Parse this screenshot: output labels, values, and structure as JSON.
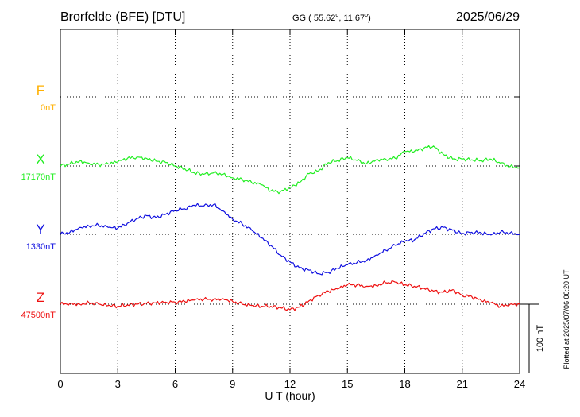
{
  "header": {
    "station": "Brorfelde (BFE)  [DTU]",
    "coords": "GG ( 55.62",
    "coords_lat_unit": "o",
    "coords_mid": ",  11.67",
    "coords_lon_unit": "o",
    "coords_close": ")",
    "date": "2025/06/29"
  },
  "footer_note": "Plotted at 2025/07/06 00:20 UT",
  "scale_label": "100 nT",
  "chart_data": {
    "type": "line",
    "xlabel": "U T (hour)",
    "xlim": [
      0,
      24
    ],
    "xticks": [
      0,
      3,
      6,
      9,
      12,
      15,
      18,
      21,
      24
    ],
    "grid": true,
    "scale_nT": 100,
    "series": [
      {
        "name": "F",
        "baseline_label": "0nT",
        "color": "#ffb000",
        "baseline_nT": 0,
        "x": [],
        "values": []
      },
      {
        "name": "X",
        "baseline_label": "17170nT",
        "color": "#22ee22",
        "baseline_nT": 17170,
        "x": [
          0,
          0.5,
          1,
          1.5,
          2,
          2.5,
          3,
          3.5,
          4,
          4.5,
          5,
          5.5,
          6,
          6.5,
          7,
          7.5,
          8,
          8.5,
          9,
          9.5,
          10,
          10.5,
          11,
          11.5,
          12,
          12.5,
          13,
          13.5,
          14,
          14.5,
          15,
          15.5,
          16,
          16.5,
          17,
          17.5,
          18,
          18.5,
          19,
          19.5,
          20,
          20.5,
          21,
          21.5,
          22,
          22.5,
          23,
          23.5,
          24
        ],
        "values": [
          17170,
          17173,
          17177,
          17174,
          17172,
          17173,
          17176,
          17181,
          17183,
          17181,
          17177,
          17175,
          17170,
          17166,
          17160,
          17158,
          17160,
          17158,
          17153,
          17151,
          17146,
          17143,
          17134,
          17133,
          17139,
          17146,
          17159,
          17163,
          17175,
          17178,
          17182,
          17178,
          17173,
          17179,
          17180,
          17181,
          17191,
          17191,
          17196,
          17199,
          17187,
          17180,
          17180,
          17179,
          17178,
          17180,
          17174,
          17169,
          17168
        ]
      },
      {
        "name": "Y",
        "baseline_label": "1330nT",
        "color": "#1010e0",
        "baseline_nT": 1330,
        "x": [
          0,
          0.5,
          1,
          1.5,
          2,
          2.5,
          3,
          3.5,
          4,
          4.5,
          5,
          5.5,
          6,
          6.5,
          7,
          7.5,
          8,
          8.5,
          9,
          9.5,
          10,
          10.5,
          11,
          11.5,
          12,
          12.5,
          13,
          13.5,
          14,
          14.5,
          15,
          15.5,
          16,
          16.5,
          17,
          17.5,
          18,
          18.5,
          19,
          19.5,
          20,
          20.5,
          21,
          21.5,
          22,
          22.5,
          23,
          23.5,
          24
        ],
        "values": [
          1330,
          1333,
          1340,
          1342,
          1343,
          1340,
          1339,
          1346,
          1353,
          1357,
          1354,
          1359,
          1365,
          1367,
          1372,
          1371,
          1373,
          1364,
          1352,
          1345,
          1336,
          1325,
          1314,
          1300,
          1290,
          1281,
          1278,
          1273,
          1275,
          1281,
          1286,
          1289,
          1292,
          1300,
          1307,
          1314,
          1320,
          1322,
          1331,
          1338,
          1340,
          1336,
          1331,
          1333,
          1332,
          1329,
          1333,
          1332,
          1330
        ]
      },
      {
        "name": "Z",
        "baseline_label": "47500nT",
        "color": "#ee1010",
        "baseline_nT": 47500,
        "x": [
          0,
          0.5,
          1,
          1.5,
          2,
          2.5,
          3,
          3.5,
          4,
          4.5,
          5,
          5.5,
          6,
          6.5,
          7,
          7.5,
          8,
          8.5,
          9,
          9.5,
          10,
          10.5,
          11,
          11.5,
          12,
          12.5,
          13,
          13.5,
          14,
          14.5,
          15,
          15.5,
          16,
          16.5,
          17,
          17.5,
          18,
          18.5,
          19,
          19.5,
          20,
          20.5,
          21,
          21.5,
          22,
          22.5,
          23,
          23.5,
          24
        ],
        "values": [
          47500,
          47501,
          47500,
          47502,
          47500,
          47498,
          47497,
          47499,
          47500,
          47501,
          47502,
          47503,
          47503,
          47504,
          47506,
          47507,
          47507,
          47508,
          47504,
          47500,
          47498,
          47497,
          47497,
          47495,
          47492,
          47496,
          47505,
          47513,
          47519,
          47522,
          47528,
          47528,
          47526,
          47527,
          47531,
          47532,
          47528,
          47526,
          47523,
          47519,
          47517,
          47521,
          47513,
          47511,
          47505,
          47502,
          47497,
          47500,
          47500
        ]
      }
    ]
  }
}
